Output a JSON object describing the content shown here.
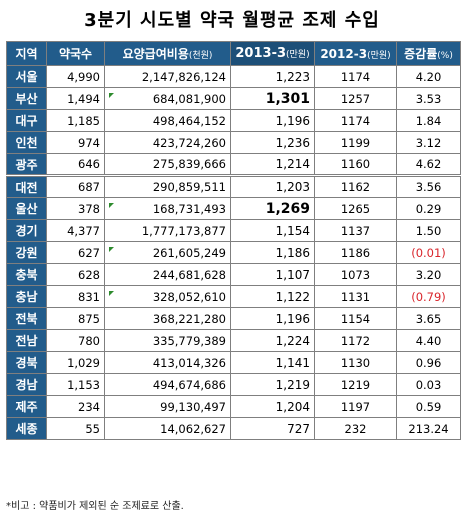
{
  "title": "3분기 시도별 약국 월평균 조제 수입",
  "headers": {
    "region": "지역",
    "pharmacies": "약국수",
    "benefit": "요양급여비용",
    "benefit_unit": "(천원)",
    "y2013": "2013-3",
    "y2013_unit": "(만원)",
    "y2012": "2012-3",
    "y2012_unit": "(만원)",
    "rate": "증감률",
    "rate_unit": "(%)"
  },
  "rows": [
    {
      "region": "서울",
      "pharmacies": "4,990",
      "benefit": "2,147,826,124",
      "y2013": "1,223",
      "y2012": "1174",
      "rate": "4.20"
    },
    {
      "region": "부산",
      "pharmacies": "1,494",
      "benefit": "684,081,900",
      "y2013": "1,301",
      "y2012": "1257",
      "rate": "3.53"
    },
    {
      "region": "대구",
      "pharmacies": "1,185",
      "benefit": "498,464,152",
      "y2013": "1,196",
      "y2012": "1174",
      "rate": "1.84"
    },
    {
      "region": "인천",
      "pharmacies": "974",
      "benefit": "423,724,260",
      "y2013": "1,236",
      "y2012": "1199",
      "rate": "3.12"
    },
    {
      "region": "광주",
      "pharmacies": "646",
      "benefit": "275,839,666",
      "y2013": "1,214",
      "y2012": "1160",
      "rate": "4.62"
    },
    {
      "region": "대전",
      "pharmacies": "687",
      "benefit": "290,859,511",
      "y2013": "1,203",
      "y2012": "1162",
      "rate": "3.56"
    },
    {
      "region": "울산",
      "pharmacies": "378",
      "benefit": "168,731,493",
      "y2013": "1,269",
      "y2012": "1265",
      "rate": "0.29"
    },
    {
      "region": "경기",
      "pharmacies": "4,377",
      "benefit": "1,777,173,877",
      "y2013": "1,154",
      "y2012": "1137",
      "rate": "1.50"
    },
    {
      "region": "강원",
      "pharmacies": "627",
      "benefit": "261,605,249",
      "y2013": "1,186",
      "y2012": "1186",
      "rate": "(0.01)"
    },
    {
      "region": "충북",
      "pharmacies": "628",
      "benefit": "244,681,628",
      "y2013": "1,107",
      "y2012": "1073",
      "rate": "3.20"
    },
    {
      "region": "충남",
      "pharmacies": "831",
      "benefit": "328,052,610",
      "y2013": "1,122",
      "y2012": "1131",
      "rate": "(0.79)"
    },
    {
      "region": "전북",
      "pharmacies": "875",
      "benefit": "368,221,280",
      "y2013": "1,196",
      "y2012": "1154",
      "rate": "3.65"
    },
    {
      "region": "전남",
      "pharmacies": "780",
      "benefit": "335,779,389",
      "y2013": "1,224",
      "y2012": "1172",
      "rate": "4.40"
    },
    {
      "region": "경북",
      "pharmacies": "1,029",
      "benefit": "413,014,326",
      "y2013": "1,141",
      "y2012": "1130",
      "rate": "0.96"
    },
    {
      "region": "경남",
      "pharmacies": "1,153",
      "benefit": "494,674,686",
      "y2013": "1,219",
      "y2012": "1219",
      "rate": "0.03"
    },
    {
      "region": "제주",
      "pharmacies": "234",
      "benefit": "99,130,497",
      "y2013": "1,204",
      "y2012": "1197",
      "rate": "0.59"
    },
    {
      "region": "세종",
      "pharmacies": "55",
      "benefit": "14,062,627",
      "y2013": "727",
      "y2012": "232",
      "rate": "213.24"
    }
  ],
  "bold_2013_rows": [
    1,
    6
  ],
  "negative_rows": [
    8,
    10
  ],
  "separator_rows": [
    5
  ],
  "flag_rows": [
    1,
    6,
    8,
    10
  ],
  "note": "*비고 : 약품비가 제외된 순 조제료로 산출.",
  "colors": {
    "header": "#225c8b",
    "negative": "#d9262c",
    "flag": "#2e8b2e"
  }
}
